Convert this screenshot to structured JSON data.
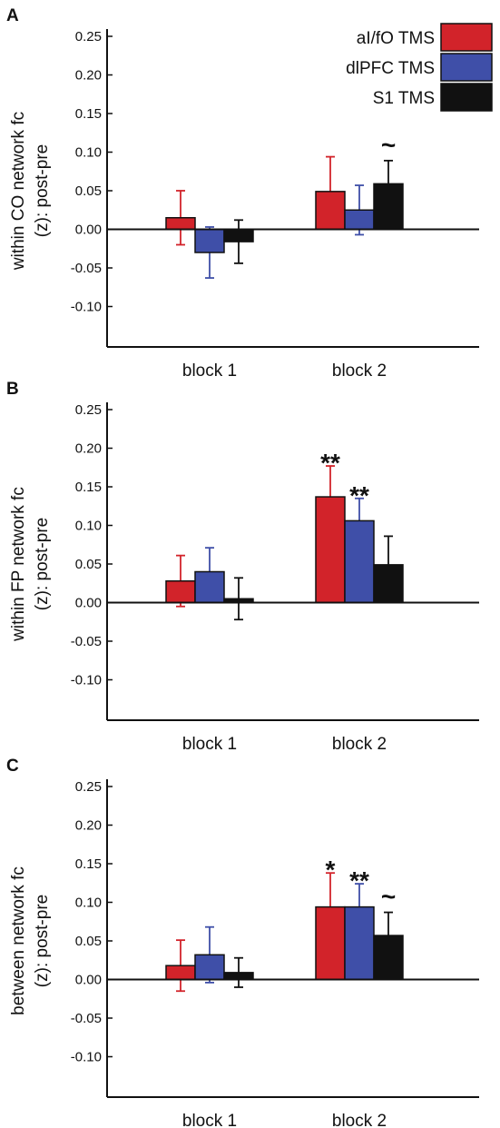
{
  "chart_data": [
    {
      "panel": "A",
      "type": "bar",
      "ylabel": [
        "within CO network fc",
        "(z): post-pre"
      ],
      "yticks": [
        "0.25",
        "0.20",
        "0.15",
        "0.10",
        "0.05",
        "0.00",
        "-0.05",
        "-0.10"
      ],
      "ylim": [
        -0.15,
        0.25
      ],
      "categories": [
        "block 1",
        "block 2"
      ],
      "series": [
        {
          "name": "aI/fO TMS",
          "color": "#d2232a",
          "err_color": "#d2232a",
          "values": [
            0.015,
            0.049
          ],
          "errors": [
            0.035,
            0.045
          ]
        },
        {
          "name": "dlPFC TMS",
          "color": "#3f4fa8",
          "err_color": "#3f4fa8",
          "values": [
            -0.03,
            0.025
          ],
          "errors": [
            0.033,
            0.032
          ]
        },
        {
          "name": "S1 TMS",
          "color": "#111111",
          "err_color": "#111111",
          "values": [
            -0.016,
            0.059
          ],
          "errors": [
            0.028,
            0.03
          ]
        }
      ],
      "annotations": [
        {
          "category": 1,
          "series": 2,
          "text": "~"
        }
      ],
      "legend": "top-right"
    },
    {
      "panel": "B",
      "type": "bar",
      "ylabel": [
        "within FP network fc",
        "(z): post-pre"
      ],
      "yticks": [
        "0.25",
        "0.20",
        "0.15",
        "0.10",
        "0.05",
        "0.00",
        "-0.05",
        "-0.10"
      ],
      "ylim": [
        -0.15,
        0.25
      ],
      "categories": [
        "block 1",
        "block 2"
      ],
      "series": [
        {
          "name": "aI/fO TMS",
          "color": "#d2232a",
          "err_color": "#d2232a",
          "values": [
            0.028,
            0.137
          ],
          "errors": [
            0.033,
            0.04
          ]
        },
        {
          "name": "dlPFC TMS",
          "color": "#3f4fa8",
          "err_color": "#3f4fa8",
          "values": [
            0.04,
            0.106
          ],
          "errors": [
            0.031,
            0.029
          ]
        },
        {
          "name": "S1 TMS",
          "color": "#111111",
          "err_color": "#111111",
          "values": [
            0.005,
            0.049
          ],
          "errors": [
            0.027,
            0.037
          ]
        }
      ],
      "annotations": [
        {
          "category": 1,
          "series": 0,
          "text": "**"
        },
        {
          "category": 1,
          "series": 1,
          "text": "**"
        }
      ]
    },
    {
      "panel": "C",
      "type": "bar",
      "ylabel": [
        "between network fc",
        "(z): post-pre"
      ],
      "yticks": [
        "0.25",
        "0.20",
        "0.15",
        "0.10",
        "0.05",
        "0.00",
        "-0.05",
        "-0.10"
      ],
      "ylim": [
        -0.15,
        0.25
      ],
      "categories": [
        "block 1",
        "block 2"
      ],
      "series": [
        {
          "name": "aI/fO TMS",
          "color": "#d2232a",
          "err_color": "#d2232a",
          "values": [
            0.018,
            0.094
          ],
          "errors": [
            0.033,
            0.044
          ]
        },
        {
          "name": "dlPFC TMS",
          "color": "#3f4fa8",
          "err_color": "#3f4fa8",
          "values": [
            0.032,
            0.094
          ],
          "errors": [
            0.036,
            0.03
          ]
        },
        {
          "name": "S1 TMS",
          "color": "#111111",
          "err_color": "#111111",
          "values": [
            0.009,
            0.057
          ],
          "errors": [
            0.019,
            0.03
          ]
        }
      ],
      "annotations": [
        {
          "category": 1,
          "series": 0,
          "text": "*"
        },
        {
          "category": 1,
          "series": 1,
          "text": "**"
        },
        {
          "category": 1,
          "series": 2,
          "text": "~"
        }
      ]
    }
  ]
}
